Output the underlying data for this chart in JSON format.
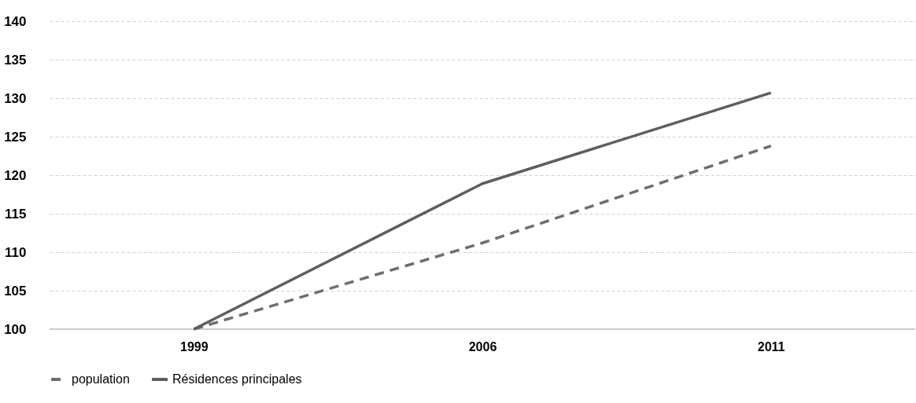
{
  "chart_data": {
    "type": "line",
    "categories": [
      "1999",
      "2006",
      "2011"
    ],
    "series": [
      {
        "name": "population",
        "color": "#6e6e6e",
        "line_style": "dashed",
        "values": [
          100,
          111.2,
          123.8
        ]
      },
      {
        "name": "Résidences principales",
        "color": "#5e5e5e",
        "line_style": "solid",
        "values": [
          100,
          118.9,
          130.7
        ]
      }
    ],
    "ylim": [
      100,
      140
    ],
    "yticks": [
      100,
      105,
      110,
      115,
      120,
      125,
      130,
      135,
      140
    ],
    "grid": "y",
    "legend": "bottom"
  }
}
